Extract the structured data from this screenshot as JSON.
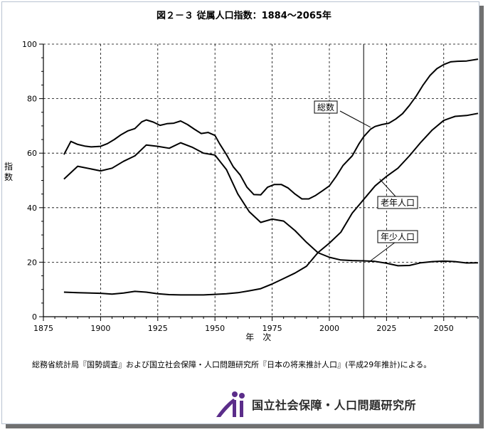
{
  "title": "図２－３ 従属人口指数：1884～2065年",
  "source_note": "総務省統計局『国勢調査』および国立社会保障・人口問題研究所『日本の将来推計人口』(平成29年推計)による。",
  "organization": "国立社会保障・人口問題研究所",
  "chart_data": {
    "type": "line",
    "ylabel": "指数",
    "xlabel": "年　次",
    "xlim": [
      1875,
      2065
    ],
    "ylim": [
      0,
      100
    ],
    "xticks": [
      1875,
      1900,
      1925,
      1950,
      1975,
      2000,
      2025,
      2050
    ],
    "yticks": [
      0,
      20,
      40,
      60,
      80,
      100
    ],
    "grid": true,
    "vertical_marker": 2015,
    "series": [
      {
        "name": "総数",
        "x": [
          1884,
          1887,
          1890,
          1893,
          1896,
          1900,
          1903,
          1906,
          1909,
          1912,
          1915,
          1918,
          1920,
          1923,
          1926,
          1929,
          1932,
          1935,
          1938,
          1941,
          1944,
          1947,
          1950,
          1952,
          1955,
          1958,
          1961,
          1964,
          1967,
          1970,
          1973,
          1976,
          1979,
          1982,
          1985,
          1988,
          1991,
          1994,
          1997,
          2000,
          2003,
          2006,
          2010,
          2013,
          2015,
          2018,
          2020,
          2023,
          2026,
          2029,
          2032,
          2035,
          2038,
          2041,
          2044,
          2047,
          2050,
          2053,
          2056,
          2060,
          2065
        ],
        "values": [
          59.5,
          64.3,
          63.2,
          62.6,
          62.3,
          62.5,
          63.5,
          65.0,
          66.8,
          68.2,
          69.0,
          71.5,
          72.2,
          71.4,
          70.2,
          70.8,
          71.0,
          71.8,
          70.5,
          68.8,
          67.2,
          67.6,
          66.5,
          63.5,
          59.5,
          55.0,
          52.0,
          47.5,
          44.8,
          44.7,
          47.5,
          48.5,
          48.5,
          47.2,
          45.0,
          43.2,
          43.2,
          44.5,
          46.2,
          48.0,
          51.5,
          55.5,
          59.0,
          63.5,
          66.0,
          68.8,
          69.8,
          70.5,
          71.0,
          72.5,
          74.5,
          77.5,
          81.0,
          85.0,
          88.5,
          91.0,
          92.5,
          93.5,
          93.7,
          93.8,
          94.5
        ]
      },
      {
        "name": "年少人口",
        "x": [
          1884,
          1890,
          1900,
          1905,
          1910,
          1915,
          1920,
          1925,
          1930,
          1935,
          1940,
          1945,
          1950,
          1955,
          1960,
          1965,
          1970,
          1975,
          1980,
          1985,
          1990,
          1995,
          2000,
          2005,
          2010,
          2015,
          2020,
          2025,
          2030,
          2035,
          2040,
          2045,
          2050,
          2055,
          2060,
          2065
        ],
        "values": [
          50.5,
          55.2,
          53.5,
          54.5,
          57.0,
          59.0,
          63.0,
          62.5,
          61.8,
          63.8,
          62.2,
          60.0,
          59.3,
          54.0,
          45.0,
          38.5,
          34.6,
          35.8,
          35.1,
          31.6,
          27.3,
          23.5,
          21.8,
          20.8,
          20.6,
          20.5,
          20.3,
          19.6,
          18.7,
          18.8,
          19.8,
          20.2,
          20.4,
          20.2,
          19.7,
          19.8
        ]
      },
      {
        "name": "老年人口",
        "x": [
          1884,
          1890,
          1900,
          1905,
          1910,
          1915,
          1920,
          1925,
          1930,
          1935,
          1940,
          1945,
          1950,
          1955,
          1960,
          1965,
          1970,
          1975,
          1980,
          1985,
          1990,
          1995,
          2000,
          2005,
          2010,
          2015,
          2020,
          2025,
          2030,
          2035,
          2040,
          2045,
          2050,
          2055,
          2060,
          2065
        ],
        "values": [
          9.0,
          8.8,
          8.6,
          8.3,
          8.7,
          9.3,
          9.0,
          8.4,
          8.1,
          8.0,
          8.0,
          8.0,
          8.2,
          8.4,
          8.8,
          9.5,
          10.3,
          12.0,
          14.0,
          16.0,
          18.5,
          23.5,
          27.0,
          31.0,
          38.0,
          43.0,
          48.0,
          51.5,
          54.5,
          59.0,
          64.0,
          68.5,
          72.0,
          73.5,
          73.8,
          74.6
        ]
      }
    ],
    "annotations": [
      {
        "text": "総数",
        "series": "総数"
      },
      {
        "text": "老年人口",
        "series": "老年人口"
      },
      {
        "text": "年少人口",
        "series": "年少人口"
      }
    ]
  }
}
